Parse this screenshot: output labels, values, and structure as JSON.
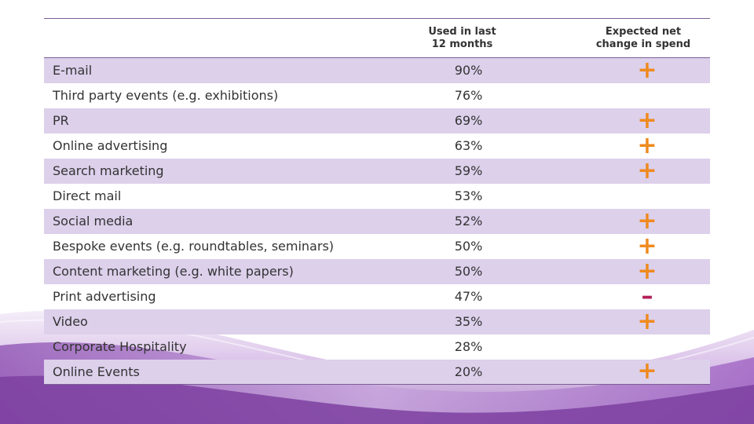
{
  "table": {
    "headers": [
      "",
      "Used in last\n12 months",
      "Expected net\nchange in spend"
    ],
    "rows": [
      {
        "name": "E-mail",
        "used": "90%",
        "change": "+"
      },
      {
        "name": "Third party events (e.g. exhibitions)",
        "used": "76%",
        "change": ""
      },
      {
        "name": "PR",
        "used": "69%",
        "change": "+"
      },
      {
        "name": "Online advertising",
        "used": "63%",
        "change": "+"
      },
      {
        "name": "Search marketing",
        "used": "59%",
        "change": "+"
      },
      {
        "name": "Direct mail",
        "used": "53%",
        "change": ""
      },
      {
        "name": "Social media",
        "used": "52%",
        "change": "+"
      },
      {
        "name": "Bespoke events (e.g. roundtables, seminars)",
        "used": "50%",
        "change": "+"
      },
      {
        "name": "Content marketing (e.g. white papers)",
        "used": "50%",
        "change": "+"
      },
      {
        "name": "Print advertising",
        "used": "47%",
        "change": "–"
      },
      {
        "name": "Video",
        "used": "35%",
        "change": "+"
      },
      {
        "name": "Corporate Hospitality",
        "used": "28%",
        "change": ""
      },
      {
        "name": "Online Events",
        "used": "20%",
        "change": "+"
      }
    ]
  },
  "colors": {
    "row_band": "#dcd0eb",
    "rule": "#7b5f95",
    "plus": "#ef8a1f",
    "minus": "#b51f57",
    "wave_dark": "#7c3fa0",
    "wave_light": "#c9a6dd"
  }
}
